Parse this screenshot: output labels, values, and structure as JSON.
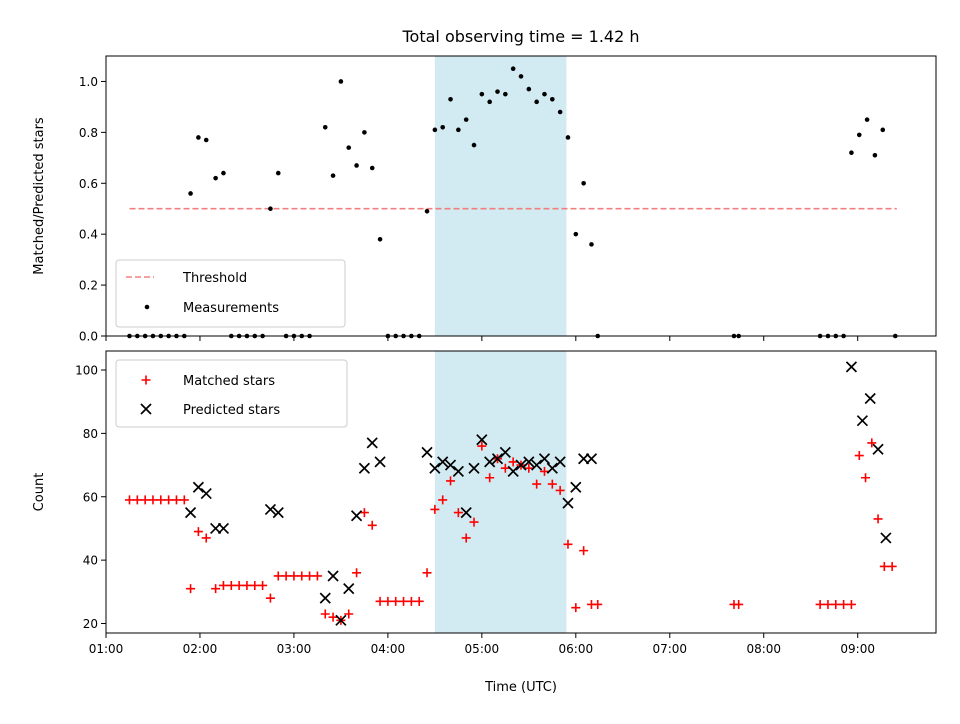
{
  "chart_data": [
    {
      "type": "scatter",
      "title": "Total observing time = 1.42 h",
      "xlabel": "",
      "ylabel": "Matched/Predicted stars",
      "xlim": [
        "01:00",
        "09:50"
      ],
      "ylim": [
        0,
        1.1
      ],
      "yticks": [
        "0.0",
        "0.2",
        "0.4",
        "0.6",
        "0.8",
        "1.0"
      ],
      "grid": false,
      "legend_position": "lower-left",
      "highlight_span": {
        "start": "04:30",
        "end": "05:54",
        "color": "#add8e6"
      },
      "threshold": {
        "name": "Threshold",
        "value": 0.5,
        "start": "01:15",
        "end": "09:25",
        "color": "#f08080"
      },
      "series": [
        {
          "name": "Measurements",
          "color": "#000000",
          "marker": "dot",
          "points": [
            [
              "01:15",
              0
            ],
            [
              "01:20",
              0
            ],
            [
              "01:25",
              0
            ],
            [
              "01:30",
              0
            ],
            [
              "01:35",
              0
            ],
            [
              "01:40",
              0
            ],
            [
              "01:45",
              0
            ],
            [
              "01:50",
              0
            ],
            [
              "01:54",
              0.56
            ],
            [
              "01:59",
              0.78
            ],
            [
              "02:04",
              0.77
            ],
            [
              "02:10",
              0.62
            ],
            [
              "02:15",
              0.64
            ],
            [
              "02:20",
              0
            ],
            [
              "02:25",
              0
            ],
            [
              "02:30",
              0
            ],
            [
              "02:35",
              0
            ],
            [
              "02:40",
              0
            ],
            [
              "02:45",
              0.5
            ],
            [
              "02:50",
              0.64
            ],
            [
              "02:55",
              0
            ],
            [
              "03:00",
              0
            ],
            [
              "03:05",
              0
            ],
            [
              "03:10",
              0
            ],
            [
              "03:20",
              0.82
            ],
            [
              "03:25",
              0.63
            ],
            [
              "03:30",
              1.0
            ],
            [
              "03:35",
              0.74
            ],
            [
              "03:40",
              0.67
            ],
            [
              "03:45",
              0.8
            ],
            [
              "03:50",
              0.66
            ],
            [
              "03:55",
              0.38
            ],
            [
              "04:00",
              0
            ],
            [
              "04:05",
              0
            ],
            [
              "04:10",
              0
            ],
            [
              "04:15",
              0
            ],
            [
              "04:20",
              0
            ],
            [
              "04:25",
              0.49
            ],
            [
              "04:30",
              0.81
            ],
            [
              "04:35",
              0.82
            ],
            [
              "04:40",
              0.93
            ],
            [
              "04:45",
              0.81
            ],
            [
              "04:50",
              0.85
            ],
            [
              "04:55",
              0.75
            ],
            [
              "05:00",
              0.95
            ],
            [
              "05:05",
              0.92
            ],
            [
              "05:10",
              0.96
            ],
            [
              "05:15",
              0.95
            ],
            [
              "05:20",
              1.05
            ],
            [
              "05:25",
              1.02
            ],
            [
              "05:30",
              0.97
            ],
            [
              "05:35",
              0.92
            ],
            [
              "05:40",
              0.95
            ],
            [
              "05:45",
              0.93
            ],
            [
              "05:50",
              0.88
            ],
            [
              "05:55",
              0.78
            ],
            [
              "06:00",
              0.4
            ],
            [
              "06:05",
              0.6
            ],
            [
              "06:10",
              0.36
            ],
            [
              "06:14",
              0
            ],
            [
              "07:41",
              0
            ],
            [
              "07:44",
              0
            ],
            [
              "08:36",
              0
            ],
            [
              "08:41",
              0
            ],
            [
              "08:46",
              0
            ],
            [
              "08:51",
              0
            ],
            [
              "08:56",
              0.72
            ],
            [
              "09:01",
              0.79
            ],
            [
              "09:06",
              0.85
            ],
            [
              "09:11",
              0.71
            ],
            [
              "09:16",
              0.81
            ],
            [
              "09:24",
              0
            ]
          ]
        }
      ]
    },
    {
      "type": "scatter",
      "title": "",
      "xlabel": "Time (UTC)",
      "ylabel": "Count",
      "xlim": [
        "01:00",
        "09:50"
      ],
      "ylim": [
        17,
        106
      ],
      "yticks": [
        "20",
        "40",
        "60",
        "80",
        "100"
      ],
      "xticks": [
        "01:00",
        "02:00",
        "03:00",
        "04:00",
        "05:00",
        "06:00",
        "07:00",
        "08:00",
        "09:00"
      ],
      "grid": false,
      "legend_position": "upper-left",
      "highlight_span": {
        "start": "04:30",
        "end": "05:54",
        "color": "#add8e6"
      },
      "series": [
        {
          "name": "Matched stars",
          "color": "#ff0000",
          "marker": "plus",
          "points": [
            [
              "01:15",
              59
            ],
            [
              "01:20",
              59
            ],
            [
              "01:25",
              59
            ],
            [
              "01:30",
              59
            ],
            [
              "01:35",
              59
            ],
            [
              "01:40",
              59
            ],
            [
              "01:45",
              59
            ],
            [
              "01:50",
              59
            ],
            [
              "01:54",
              31
            ],
            [
              "01:59",
              49
            ],
            [
              "02:04",
              47
            ],
            [
              "02:10",
              31
            ],
            [
              "02:15",
              32
            ],
            [
              "02:20",
              32
            ],
            [
              "02:25",
              32
            ],
            [
              "02:30",
              32
            ],
            [
              "02:35",
              32
            ],
            [
              "02:40",
              32
            ],
            [
              "02:45",
              28
            ],
            [
              "02:50",
              35
            ],
            [
              "02:55",
              35
            ],
            [
              "03:00",
              35
            ],
            [
              "03:05",
              35
            ],
            [
              "03:10",
              35
            ],
            [
              "03:15",
              35
            ],
            [
              "03:20",
              23
            ],
            [
              "03:25",
              22
            ],
            [
              "03:30",
              21
            ],
            [
              "03:35",
              23
            ],
            [
              "03:40",
              36
            ],
            [
              "03:45",
              55
            ],
            [
              "03:50",
              51
            ],
            [
              "03:55",
              27
            ],
            [
              "04:00",
              27
            ],
            [
              "04:05",
              27
            ],
            [
              "04:10",
              27
            ],
            [
              "04:15",
              27
            ],
            [
              "04:20",
              27
            ],
            [
              "04:25",
              36
            ],
            [
              "04:30",
              56
            ],
            [
              "04:35",
              59
            ],
            [
              "04:40",
              65
            ],
            [
              "04:45",
              55
            ],
            [
              "04:50",
              47
            ],
            [
              "04:55",
              52
            ],
            [
              "05:00",
              76
            ],
            [
              "05:05",
              66
            ],
            [
              "05:10",
              72
            ],
            [
              "05:15",
              69
            ],
            [
              "05:20",
              71
            ],
            [
              "05:25",
              70
            ],
            [
              "05:30",
              69
            ],
            [
              "05:35",
              64
            ],
            [
              "05:40",
              68
            ],
            [
              "05:45",
              64
            ],
            [
              "05:50",
              62
            ],
            [
              "05:55",
              45
            ],
            [
              "06:00",
              25
            ],
            [
              "06:05",
              43
            ],
            [
              "06:10",
              26
            ],
            [
              "06:14",
              26
            ],
            [
              "07:41",
              26
            ],
            [
              "07:44",
              26
            ],
            [
              "08:36",
              26
            ],
            [
              "08:41",
              26
            ],
            [
              "08:46",
              26
            ],
            [
              "08:51",
              26
            ],
            [
              "08:56",
              26
            ],
            [
              "09:01",
              73
            ],
            [
              "09:05",
              66
            ],
            [
              "09:09",
              77
            ],
            [
              "09:13",
              53
            ],
            [
              "09:17",
              38
            ],
            [
              "09:22",
              38
            ]
          ]
        },
        {
          "name": "Predicted stars",
          "color": "#000000",
          "marker": "x",
          "points": [
            [
              "01:54",
              55
            ],
            [
              "01:59",
              63
            ],
            [
              "02:04",
              61
            ],
            [
              "02:10",
              50
            ],
            [
              "02:15",
              50
            ],
            [
              "02:45",
              56
            ],
            [
              "02:50",
              55
            ],
            [
              "03:20",
              28
            ],
            [
              "03:25",
              35
            ],
            [
              "03:30",
              21
            ],
            [
              "03:35",
              31
            ],
            [
              "03:40",
              54
            ],
            [
              "03:45",
              69
            ],
            [
              "03:50",
              77
            ],
            [
              "03:55",
              71
            ],
            [
              "04:25",
              74
            ],
            [
              "04:30",
              69
            ],
            [
              "04:35",
              71
            ],
            [
              "04:40",
              70
            ],
            [
              "04:45",
              68
            ],
            [
              "04:50",
              55
            ],
            [
              "04:55",
              69
            ],
            [
              "05:00",
              78
            ],
            [
              "05:05",
              71
            ],
            [
              "05:10",
              72
            ],
            [
              "05:15",
              74
            ],
            [
              "05:20",
              68
            ],
            [
              "05:25",
              70
            ],
            [
              "05:30",
              71
            ],
            [
              "05:35",
              70
            ],
            [
              "05:40",
              72
            ],
            [
              "05:45",
              69
            ],
            [
              "05:50",
              71
            ],
            [
              "05:55",
              58
            ],
            [
              "06:00",
              63
            ],
            [
              "06:05",
              72
            ],
            [
              "06:10",
              72
            ],
            [
              "08:56",
              101
            ],
            [
              "09:03",
              84
            ],
            [
              "09:08",
              91
            ],
            [
              "09:13",
              75
            ],
            [
              "09:18",
              47
            ]
          ]
        }
      ]
    }
  ]
}
